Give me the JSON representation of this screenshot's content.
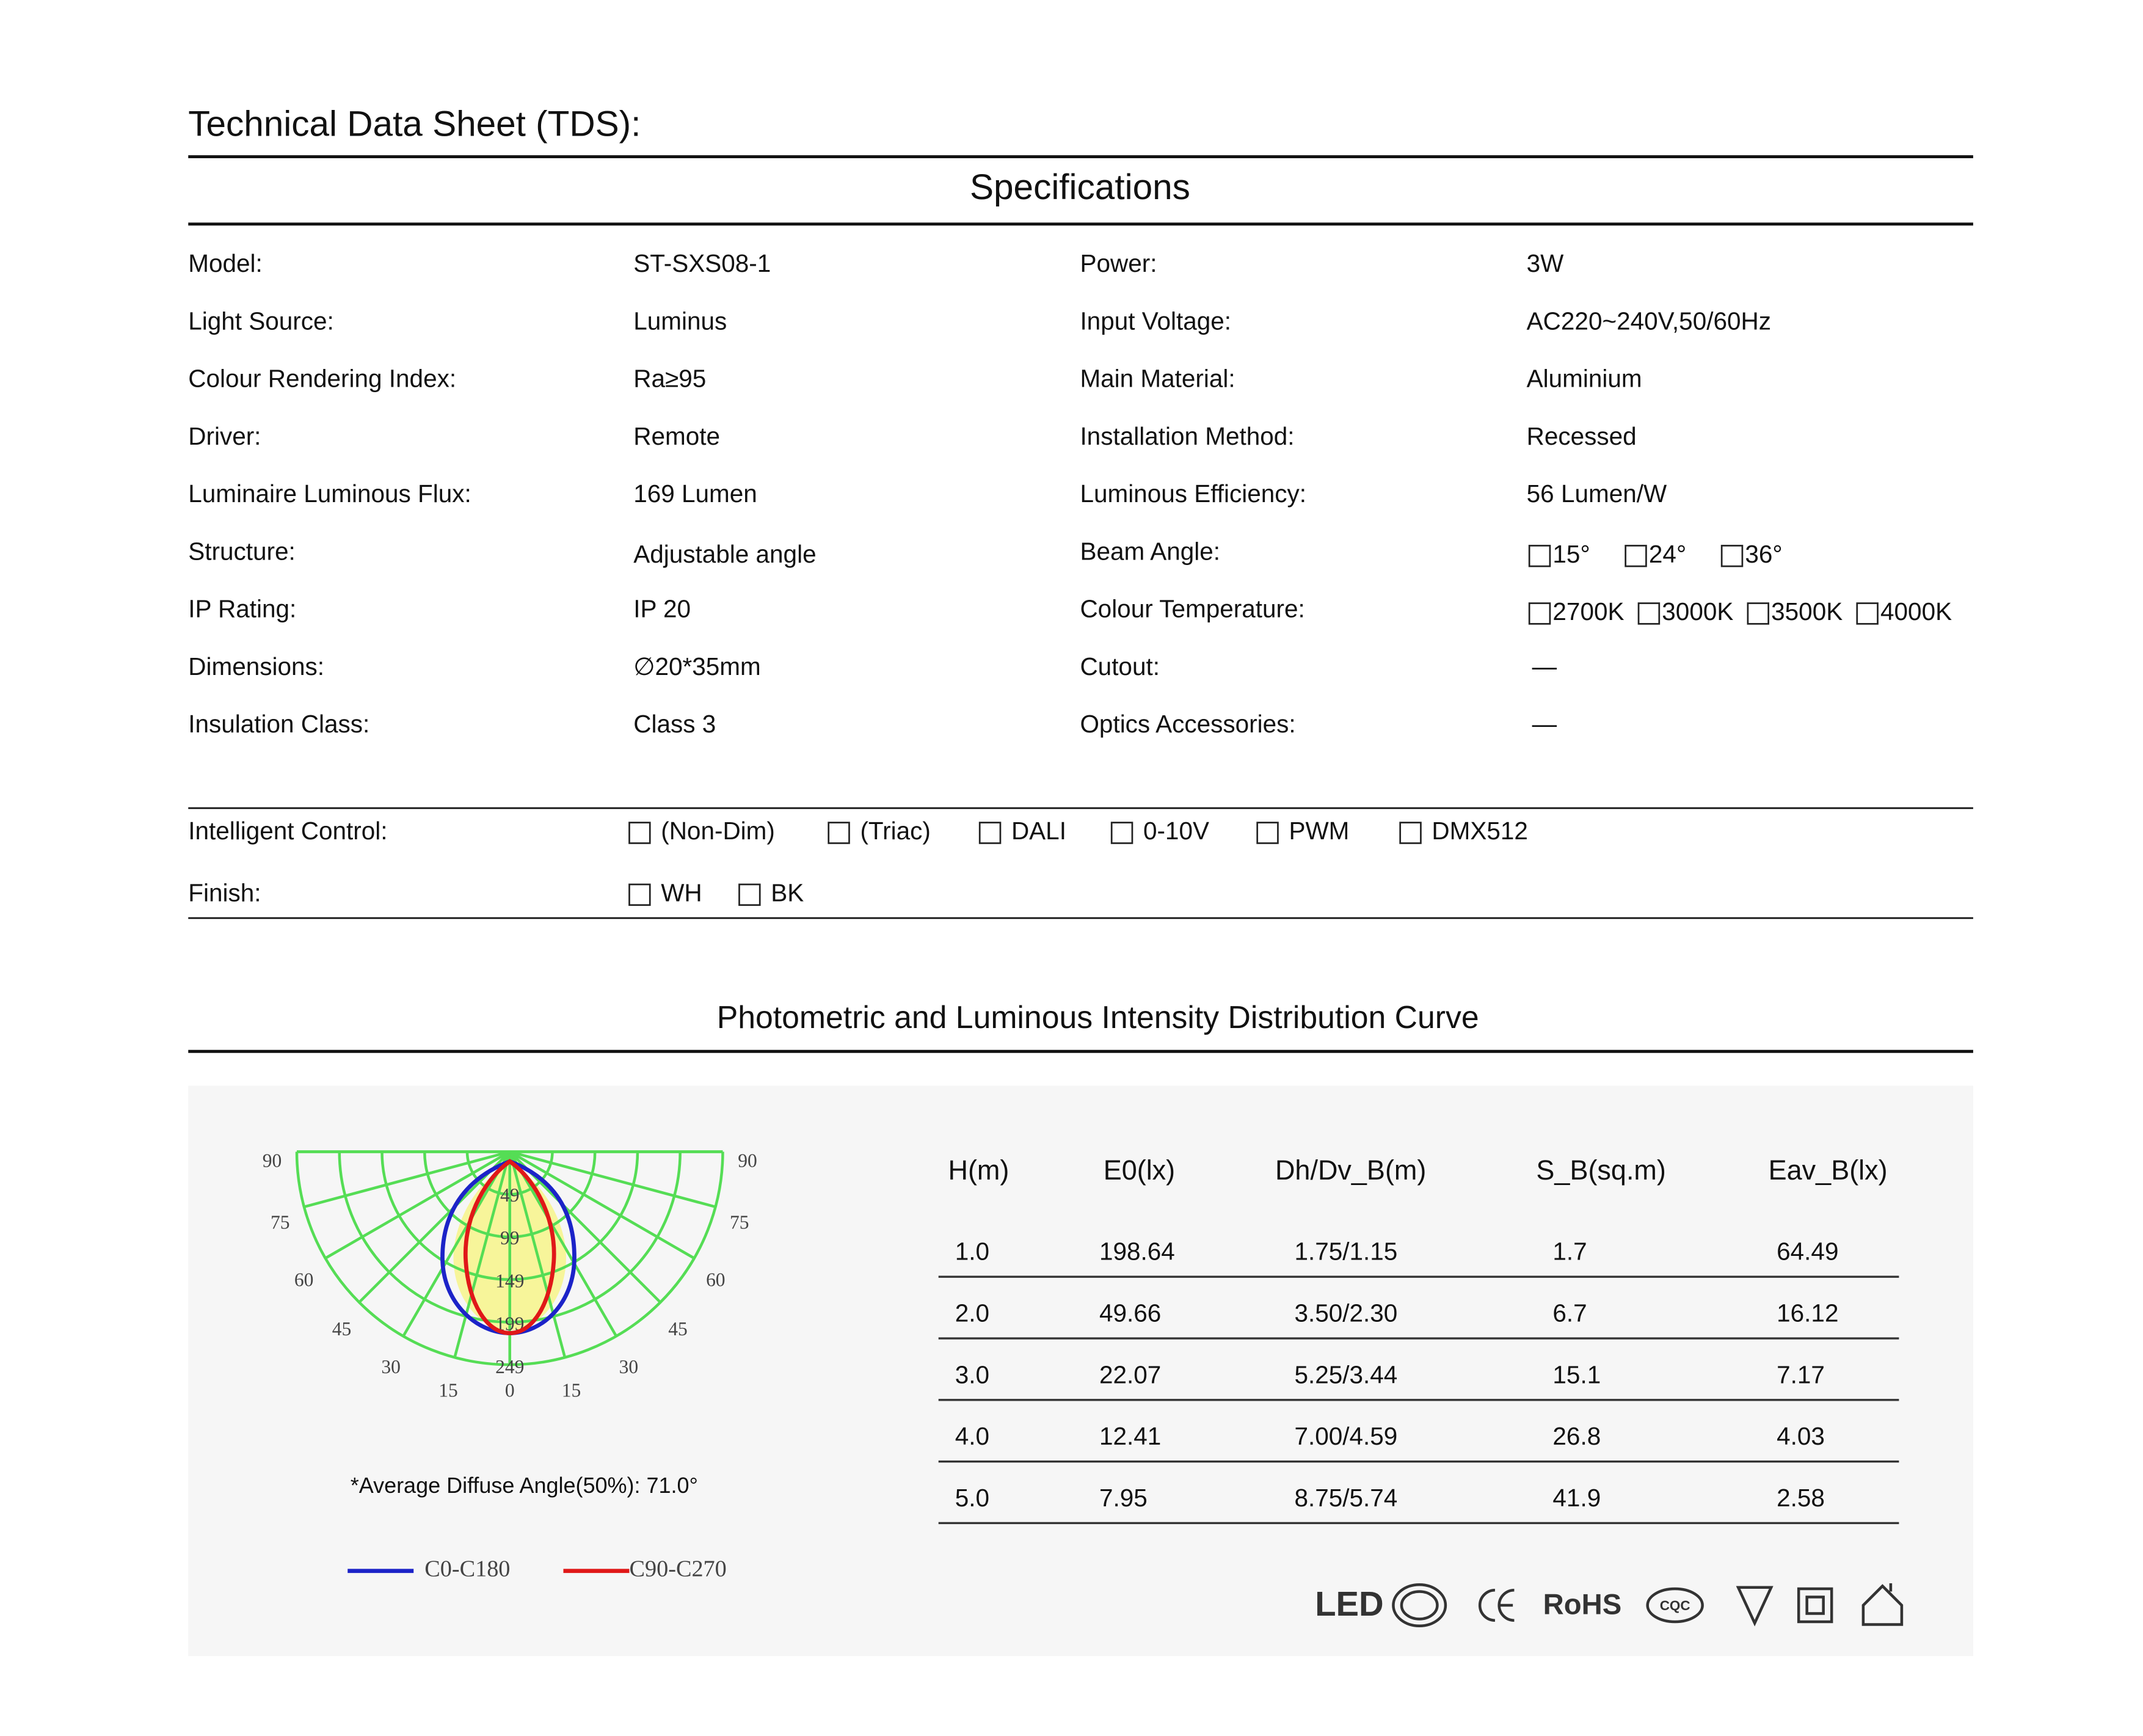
{
  "header": {
    "title": "Technical Data Sheet (TDS):"
  },
  "specifications": {
    "title": "Specifications",
    "rows": [
      [
        {
          "label": "Model:",
          "value": "ST-SXS08-1"
        },
        {
          "label": "Power:",
          "value": "3W"
        }
      ],
      [
        {
          "label": "Light Source:",
          "value": "Luminus"
        },
        {
          "label": "Input Voltage:",
          "value": "AC220~240V,50/60Hz"
        }
      ],
      [
        {
          "label": "Colour Rendering Index:",
          "value": "Ra≥95"
        },
        {
          "label": "Main Material:",
          "value": "Aluminium"
        }
      ],
      [
        {
          "label": "Driver:",
          "value": "Remote"
        },
        {
          "label": "Installation Method:",
          "value": "Recessed"
        }
      ],
      [
        {
          "label": "Luminaire Luminous Flux:",
          "value": "169  Lumen"
        },
        {
          "label": "Luminous Efficiency:",
          "value": "56  Lumen/W"
        }
      ],
      [
        {
          "label": "Structure:",
          "value": "Adjustable  angle"
        },
        {
          "label": "Beam Angle:",
          "options": [
            "15°",
            "24°",
            "36°"
          ]
        }
      ],
      [
        {
          "label": "IP Rating:",
          "value": "IP 20"
        },
        {
          "label": "Colour Temperature:",
          "options": [
            "2700K",
            "3000K",
            "3500K",
            "4000K"
          ]
        }
      ],
      [
        {
          "label": "Dimensions:",
          "value": "∅20*35mm"
        },
        {
          "label": "Cutout:",
          "value": "—"
        }
      ],
      [
        {
          "label": "Insulation Class:",
          "value": "Class 3"
        },
        {
          "label": "Optics Accessories:",
          "value": "—"
        }
      ]
    ]
  },
  "controls": [
    {
      "label": "Intelligent Control:",
      "options": [
        "(Non-Dim)",
        "(Triac)",
        "DALI",
        "0-10V",
        "PWM",
        "DMX512"
      ]
    },
    {
      "label": "Finish:",
      "options": [
        "WH",
        "BK"
      ]
    }
  ],
  "photometric": {
    "title": "Photometric and Luminous Intensity Distribution Curve",
    "polar": {
      "angle_labels": [
        "90",
        "75",
        "60",
        "45",
        "30",
        "15"
      ],
      "zero_label": "0",
      "intensity_labels": [
        "49",
        "99",
        "149",
        "199",
        "249"
      ],
      "note": "*Average Diffuse Angle(50%): 71.0°",
      "legend": [
        {
          "name": "C0-C180",
          "color": "#1c23c8"
        },
        {
          "name": "C90-C270",
          "color": "#e01818"
        }
      ]
    },
    "table": {
      "header": [
        "H(m)",
        "E0(lx)",
        "Dh/Dv_B(m)",
        "S_B(sq.m)",
        "Eav_B(lx)"
      ],
      "rows": [
        [
          "1.0",
          "198.64",
          "1.75/1.15",
          "1.7",
          "64.49"
        ],
        [
          "2.0",
          "49.66",
          "3.50/2.30",
          "6.7",
          "16.12"
        ],
        [
          "3.0",
          "22.07",
          "5.25/3.44",
          "15.1",
          "7.17"
        ],
        [
          "4.0",
          "12.41",
          "7.00/4.59",
          "26.8",
          "4.03"
        ],
        [
          "5.0",
          "7.95",
          "8.75/5.74",
          "41.9",
          "2.58"
        ]
      ]
    },
    "certifications": [
      "LED",
      "RoHS",
      "CQC"
    ]
  }
}
